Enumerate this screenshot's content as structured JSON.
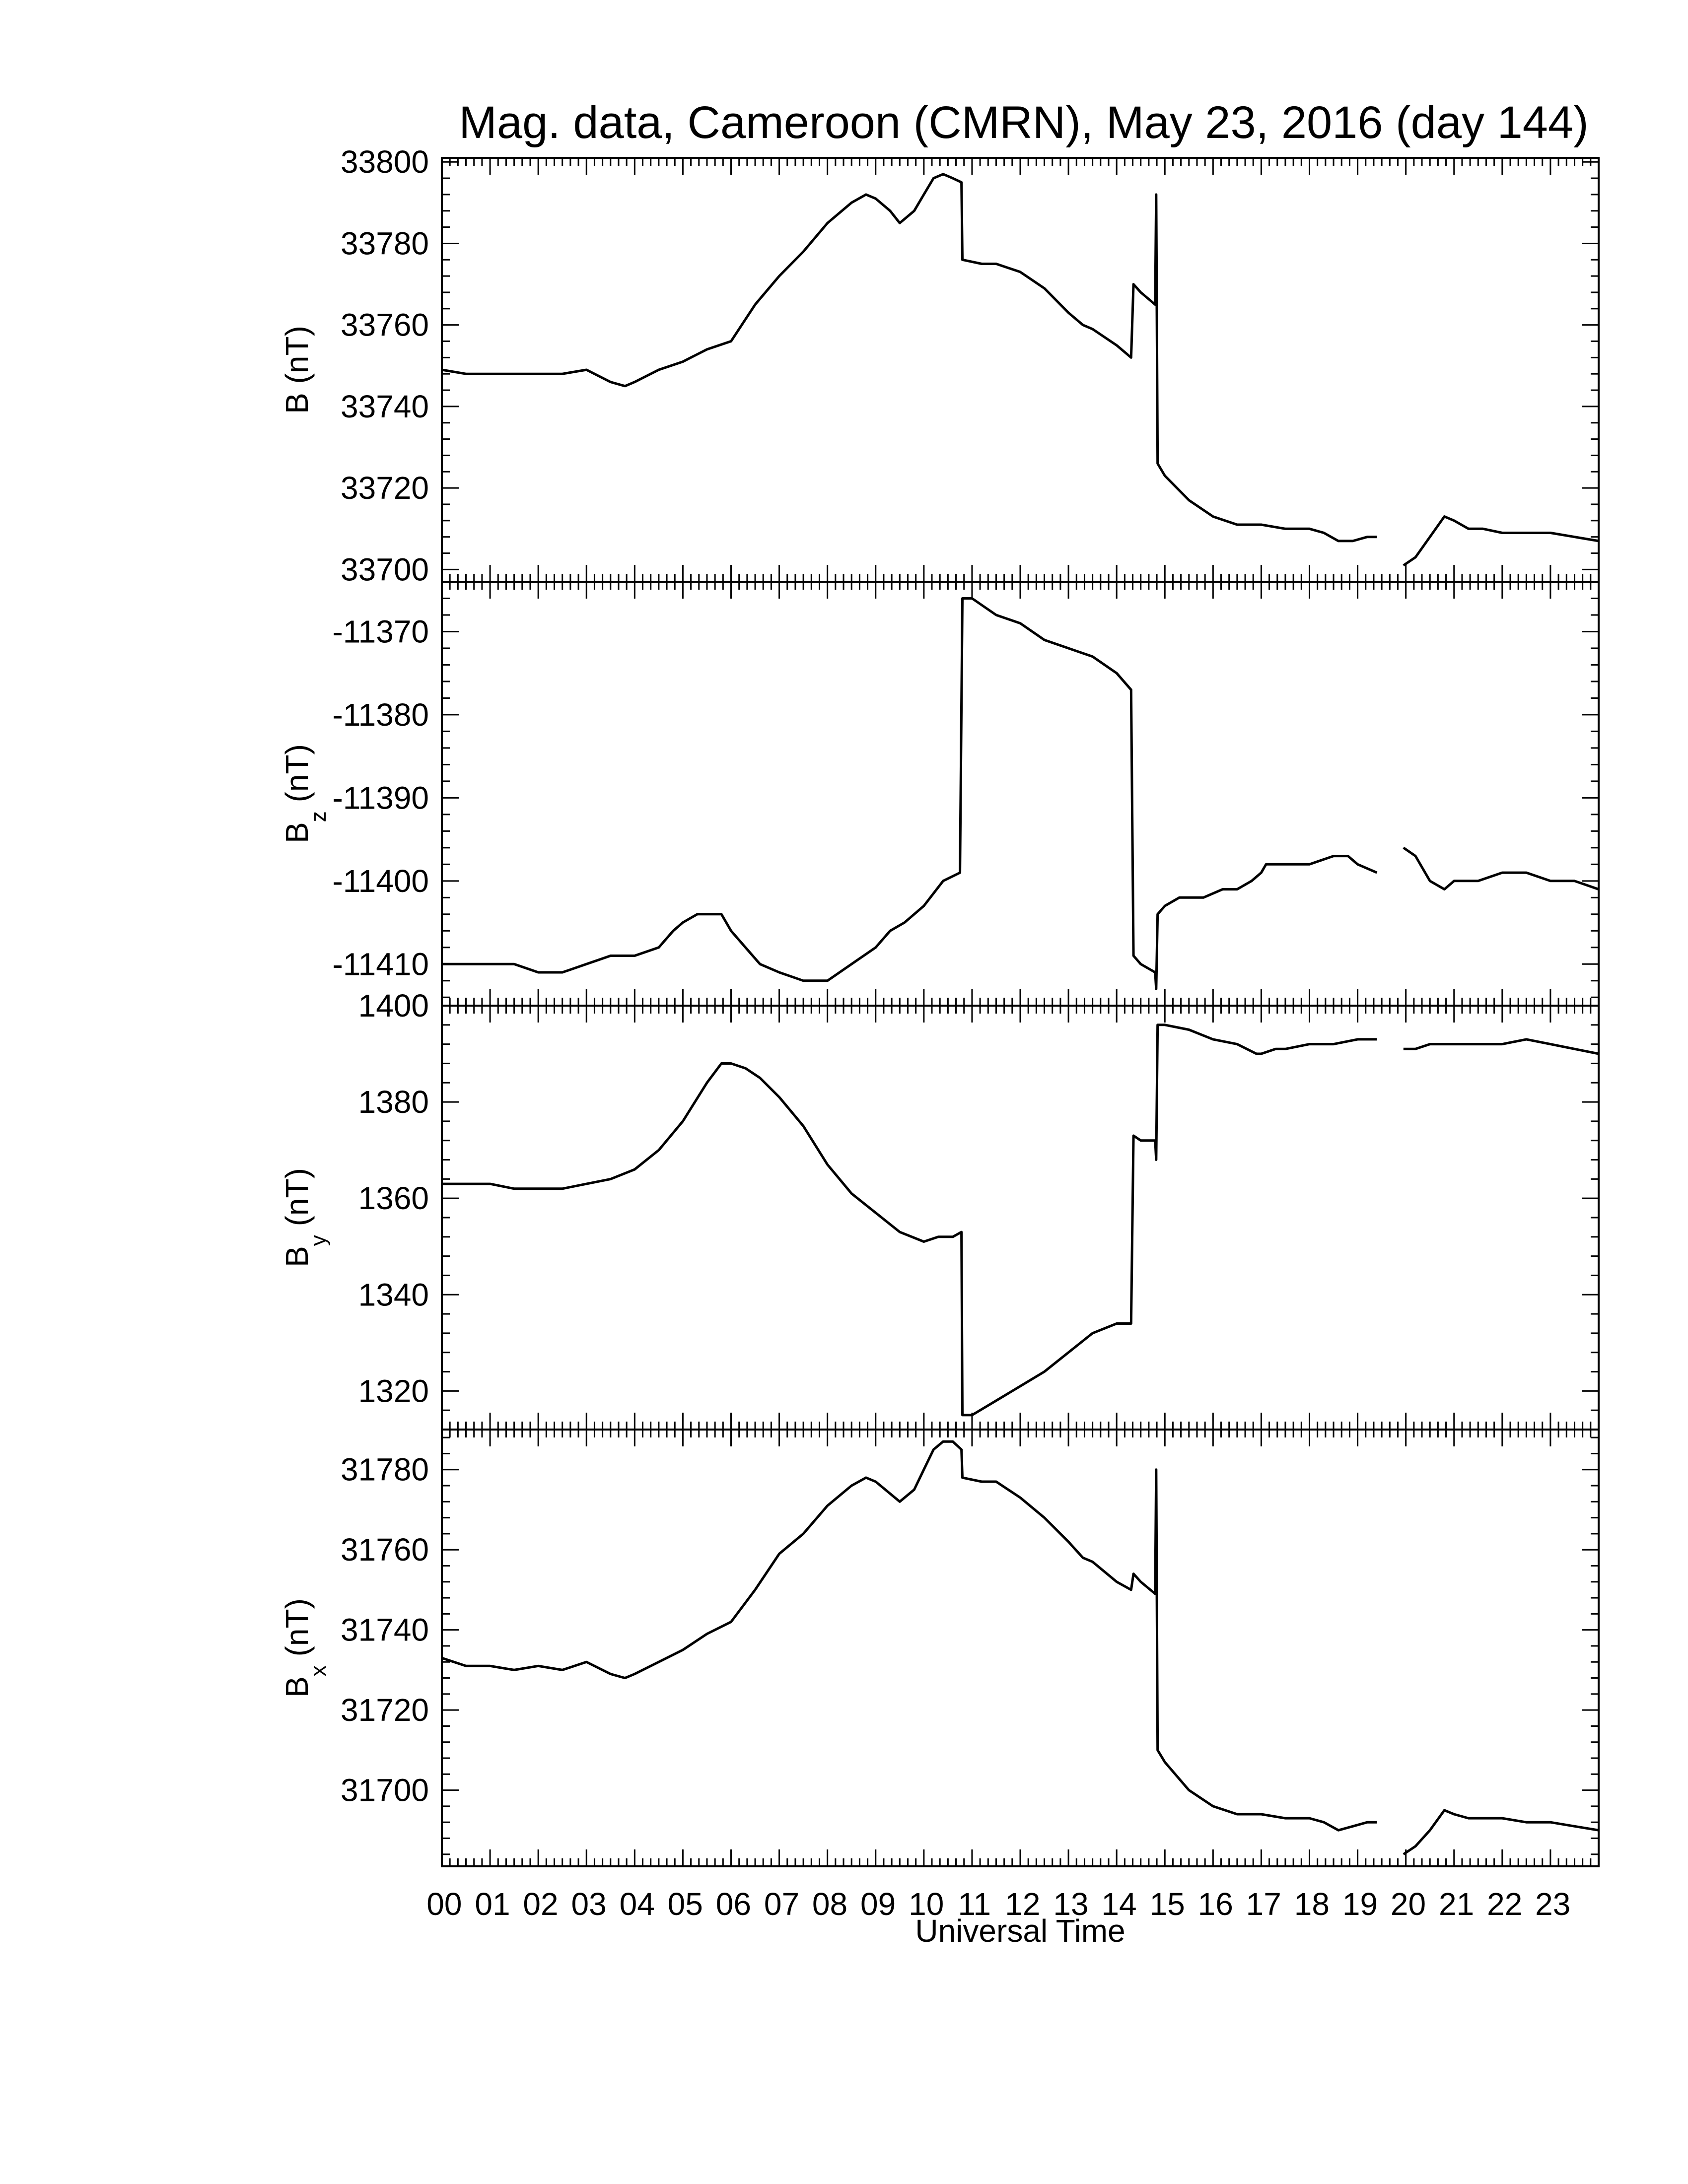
{
  "title": "Mag. data, Cameroon (CMRN), May 23, 2016 (day 144)",
  "xlabel": "Universal Time",
  "xtick_labels": [
    "00",
    "01",
    "02",
    "03",
    "04",
    "05",
    "06",
    "07",
    "08",
    "09",
    "10",
    "11",
    "12",
    "13",
    "14",
    "15",
    "16",
    "17",
    "18",
    "19",
    "20",
    "21",
    "22",
    "23"
  ],
  "colors": {
    "trace": "#000000",
    "background": "#ffffff"
  },
  "chart_data": [
    {
      "type": "line",
      "panel": "B",
      "ylabel_main": "B",
      "ylabel_sub": "",
      "ylabel_unit": "(nT)",
      "xlim": [
        0,
        24
      ],
      "ylim": [
        33697,
        33801
      ],
      "yticks": [
        33700,
        33720,
        33740,
        33760,
        33780,
        33800
      ],
      "ytick_labels": [
        "33700",
        "33720",
        "33740",
        "33760",
        "33780",
        "33800"
      ],
      "segments": [
        [
          [
            0,
            33749
          ],
          [
            0.5,
            33748
          ],
          [
            1.0,
            33748
          ],
          [
            1.5,
            33748
          ],
          [
            2.0,
            33748
          ],
          [
            2.5,
            33748
          ],
          [
            3.0,
            33749
          ],
          [
            3.5,
            33746
          ],
          [
            3.8,
            33745
          ],
          [
            4.0,
            33746
          ],
          [
            4.5,
            33749
          ],
          [
            5.0,
            33751
          ],
          [
            5.5,
            33754
          ],
          [
            6.0,
            33756
          ],
          [
            6.5,
            33765
          ],
          [
            7.0,
            33772
          ],
          [
            7.5,
            33778
          ],
          [
            8.0,
            33785
          ],
          [
            8.5,
            33790
          ],
          [
            8.8,
            33792
          ],
          [
            9.0,
            33791
          ],
          [
            9.3,
            33788
          ],
          [
            9.5,
            33785
          ],
          [
            9.8,
            33788
          ],
          [
            10.0,
            33792
          ],
          [
            10.2,
            33796
          ],
          [
            10.4,
            33797
          ],
          [
            10.6,
            33796
          ],
          [
            10.78,
            33795
          ],
          [
            10.8,
            33776
          ],
          [
            11.2,
            33775
          ],
          [
            11.5,
            33775
          ],
          [
            12.0,
            33773
          ],
          [
            12.5,
            33769
          ],
          [
            13.0,
            33763
          ],
          [
            13.3,
            33760
          ],
          [
            13.5,
            33759
          ],
          [
            14.0,
            33755
          ],
          [
            14.3,
            33752
          ],
          [
            14.35,
            33770
          ],
          [
            14.5,
            33768
          ],
          [
            14.8,
            33765
          ],
          [
            14.82,
            33792
          ],
          [
            14.85,
            33726
          ],
          [
            15.0,
            33723
          ],
          [
            15.5,
            33717
          ],
          [
            16.0,
            33713
          ],
          [
            16.5,
            33711
          ],
          [
            17.0,
            33711
          ],
          [
            17.5,
            33710
          ],
          [
            18.0,
            33710
          ],
          [
            18.3,
            33709
          ],
          [
            18.6,
            33707
          ],
          [
            18.9,
            33707
          ],
          [
            19.2,
            33708
          ],
          [
            19.4,
            33708
          ]
        ],
        [
          [
            19.95,
            33701
          ],
          [
            20.2,
            33703
          ],
          [
            20.5,
            33708
          ],
          [
            20.8,
            33713
          ],
          [
            21.0,
            33712
          ],
          [
            21.3,
            33710
          ],
          [
            21.6,
            33710
          ],
          [
            22.0,
            33709
          ],
          [
            22.5,
            33709
          ],
          [
            23.0,
            33709
          ],
          [
            23.5,
            33708
          ],
          [
            24.0,
            33707
          ]
        ]
      ]
    },
    {
      "type": "line",
      "panel": "Bz",
      "ylabel_main": "B",
      "ylabel_sub": "z",
      "ylabel_unit": "(nT)",
      "xlim": [
        0,
        24
      ],
      "ylim": [
        -11415,
        -11364
      ],
      "yticks": [
        -11410,
        -11400,
        -11390,
        -11380,
        -11370
      ],
      "ytick_labels": [
        "-11410",
        "-11400",
        "-11390",
        "-11380",
        "-11370"
      ],
      "segments": [
        [
          [
            0,
            -11410
          ],
          [
            0.5,
            -11410
          ],
          [
            1.0,
            -11410
          ],
          [
            1.5,
            -11410
          ],
          [
            2.0,
            -11411
          ],
          [
            2.5,
            -11411
          ],
          [
            3.0,
            -11410
          ],
          [
            3.5,
            -11409
          ],
          [
            4.0,
            -11409
          ],
          [
            4.5,
            -11408
          ],
          [
            4.8,
            -11406
          ],
          [
            5.0,
            -11405
          ],
          [
            5.3,
            -11404
          ],
          [
            5.8,
            -11404
          ],
          [
            6.0,
            -11406
          ],
          [
            6.3,
            -11408
          ],
          [
            6.6,
            -11410
          ],
          [
            7.0,
            -11411
          ],
          [
            7.5,
            -11412
          ],
          [
            8.0,
            -11412
          ],
          [
            8.5,
            -11410
          ],
          [
            9.0,
            -11408
          ],
          [
            9.3,
            -11406
          ],
          [
            9.6,
            -11405
          ],
          [
            10.0,
            -11403
          ],
          [
            10.4,
            -11400
          ],
          [
            10.75,
            -11399
          ],
          [
            10.8,
            -11366
          ],
          [
            11.0,
            -11366
          ],
          [
            11.5,
            -11368
          ],
          [
            12.0,
            -11369
          ],
          [
            12.5,
            -11371
          ],
          [
            13.0,
            -11372
          ],
          [
            13.5,
            -11373
          ],
          [
            14.0,
            -11375
          ],
          [
            14.3,
            -11377
          ],
          [
            14.35,
            -11409
          ],
          [
            14.5,
            -11410
          ],
          [
            14.8,
            -11411
          ],
          [
            14.82,
            -11413
          ],
          [
            14.85,
            -11404
          ],
          [
            15.0,
            -11403
          ],
          [
            15.3,
            -11402
          ],
          [
            15.8,
            -11402
          ],
          [
            16.2,
            -11401
          ],
          [
            16.5,
            -11401
          ],
          [
            16.8,
            -11400
          ],
          [
            17.0,
            -11399
          ],
          [
            17.1,
            -11398
          ],
          [
            17.5,
            -11398
          ],
          [
            18.0,
            -11398
          ],
          [
            18.5,
            -11397
          ],
          [
            18.8,
            -11397
          ],
          [
            19.0,
            -11398
          ],
          [
            19.4,
            -11399
          ]
        ],
        [
          [
            19.95,
            -11396
          ],
          [
            20.2,
            -11397
          ],
          [
            20.5,
            -11400
          ],
          [
            20.8,
            -11401
          ],
          [
            21.0,
            -11400
          ],
          [
            21.5,
            -11400
          ],
          [
            22.0,
            -11399
          ],
          [
            22.5,
            -11399
          ],
          [
            23.0,
            -11400
          ],
          [
            23.5,
            -11400
          ],
          [
            24.0,
            -11401
          ]
        ]
      ]
    },
    {
      "type": "line",
      "panel": "By",
      "ylabel_main": "B",
      "ylabel_sub": "y",
      "ylabel_unit": "(nT)",
      "xlim": [
        0,
        24
      ],
      "ylim": [
        1312,
        1400
      ],
      "yticks": [
        1320,
        1340,
        1360,
        1380,
        1400
      ],
      "ytick_labels": [
        "1320",
        "1340",
        "1360",
        "1380",
        "1400"
      ],
      "segments": [
        [
          [
            0,
            1363
          ],
          [
            0.5,
            1363
          ],
          [
            1.0,
            1363
          ],
          [
            1.5,
            1362
          ],
          [
            2.0,
            1362
          ],
          [
            2.5,
            1362
          ],
          [
            3.0,
            1363
          ],
          [
            3.5,
            1364
          ],
          [
            4.0,
            1366
          ],
          [
            4.5,
            1370
          ],
          [
            5.0,
            1376
          ],
          [
            5.5,
            1384
          ],
          [
            5.8,
            1388
          ],
          [
            6.0,
            1388
          ],
          [
            6.3,
            1387
          ],
          [
            6.6,
            1385
          ],
          [
            7.0,
            1381
          ],
          [
            7.5,
            1375
          ],
          [
            8.0,
            1367
          ],
          [
            8.5,
            1361
          ],
          [
            9.0,
            1357
          ],
          [
            9.5,
            1353
          ],
          [
            10.0,
            1351
          ],
          [
            10.3,
            1352
          ],
          [
            10.6,
            1352
          ],
          [
            10.78,
            1353
          ],
          [
            10.8,
            1315
          ],
          [
            11.0,
            1315
          ],
          [
            11.5,
            1318
          ],
          [
            12.0,
            1321
          ],
          [
            12.5,
            1324
          ],
          [
            13.0,
            1328
          ],
          [
            13.5,
            1332
          ],
          [
            14.0,
            1334
          ],
          [
            14.3,
            1334
          ],
          [
            14.35,
            1373
          ],
          [
            14.5,
            1372
          ],
          [
            14.8,
            1372
          ],
          [
            14.82,
            1368
          ],
          [
            14.85,
            1396
          ],
          [
            15.0,
            1396
          ],
          [
            15.5,
            1395
          ],
          [
            16.0,
            1393
          ],
          [
            16.5,
            1392
          ],
          [
            16.9,
            1390
          ],
          [
            17.0,
            1390
          ],
          [
            17.3,
            1391
          ],
          [
            17.5,
            1391
          ],
          [
            18.0,
            1392
          ],
          [
            18.5,
            1392
          ],
          [
            19.0,
            1393
          ],
          [
            19.4,
            1393
          ]
        ],
        [
          [
            19.95,
            1391
          ],
          [
            20.2,
            1391
          ],
          [
            20.5,
            1392
          ],
          [
            21.0,
            1392
          ],
          [
            21.5,
            1392
          ],
          [
            22.0,
            1392
          ],
          [
            22.5,
            1393
          ],
          [
            23.0,
            1392
          ],
          [
            23.5,
            1391
          ],
          [
            24.0,
            1390
          ]
        ]
      ]
    },
    {
      "type": "line",
      "panel": "Bx",
      "ylabel_main": "B",
      "ylabel_sub": "x",
      "ylabel_unit": "(nT)",
      "xlim": [
        0,
        24
      ],
      "ylim": [
        31681,
        31790
      ],
      "yticks": [
        31700,
        31720,
        31740,
        31760,
        31780
      ],
      "ytick_labels": [
        "31700",
        "31720",
        "31740",
        "31760",
        "31780"
      ],
      "segments": [
        [
          [
            0,
            31733
          ],
          [
            0.5,
            31731
          ],
          [
            1.0,
            31731
          ],
          [
            1.5,
            31730
          ],
          [
            2.0,
            31731
          ],
          [
            2.5,
            31730
          ],
          [
            3.0,
            31732
          ],
          [
            3.5,
            31729
          ],
          [
            3.8,
            31728
          ],
          [
            4.0,
            31729
          ],
          [
            4.5,
            31732
          ],
          [
            5.0,
            31735
          ],
          [
            5.5,
            31739
          ],
          [
            6.0,
            31742
          ],
          [
            6.5,
            31750
          ],
          [
            7.0,
            31759
          ],
          [
            7.5,
            31764
          ],
          [
            8.0,
            31771
          ],
          [
            8.5,
            31776
          ],
          [
            8.8,
            31778
          ],
          [
            9.0,
            31777
          ],
          [
            9.3,
            31774
          ],
          [
            9.5,
            31772
          ],
          [
            9.8,
            31775
          ],
          [
            10.0,
            31780
          ],
          [
            10.2,
            31785
          ],
          [
            10.4,
            31787
          ],
          [
            10.6,
            31787
          ],
          [
            10.78,
            31785
          ],
          [
            10.8,
            31778
          ],
          [
            11.2,
            31777
          ],
          [
            11.5,
            31777
          ],
          [
            12.0,
            31773
          ],
          [
            12.5,
            31768
          ],
          [
            13.0,
            31762
          ],
          [
            13.3,
            31758
          ],
          [
            13.5,
            31757
          ],
          [
            14.0,
            31752
          ],
          [
            14.3,
            31750
          ],
          [
            14.35,
            31754
          ],
          [
            14.5,
            31752
          ],
          [
            14.8,
            31749
          ],
          [
            14.82,
            31780
          ],
          [
            14.85,
            31710
          ],
          [
            15.0,
            31707
          ],
          [
            15.5,
            31700
          ],
          [
            16.0,
            31696
          ],
          [
            16.5,
            31694
          ],
          [
            17.0,
            31694
          ],
          [
            17.5,
            31693
          ],
          [
            18.0,
            31693
          ],
          [
            18.3,
            31692
          ],
          [
            18.6,
            31690
          ],
          [
            18.9,
            31691
          ],
          [
            19.2,
            31692
          ],
          [
            19.4,
            31692
          ]
        ],
        [
          [
            19.95,
            31684
          ],
          [
            20.2,
            31686
          ],
          [
            20.5,
            31690
          ],
          [
            20.8,
            31695
          ],
          [
            21.0,
            31694
          ],
          [
            21.3,
            31693
          ],
          [
            21.6,
            31693
          ],
          [
            22.0,
            31693
          ],
          [
            22.5,
            31692
          ],
          [
            23.0,
            31692
          ],
          [
            23.5,
            31691
          ],
          [
            24.0,
            31690
          ]
        ]
      ]
    }
  ]
}
